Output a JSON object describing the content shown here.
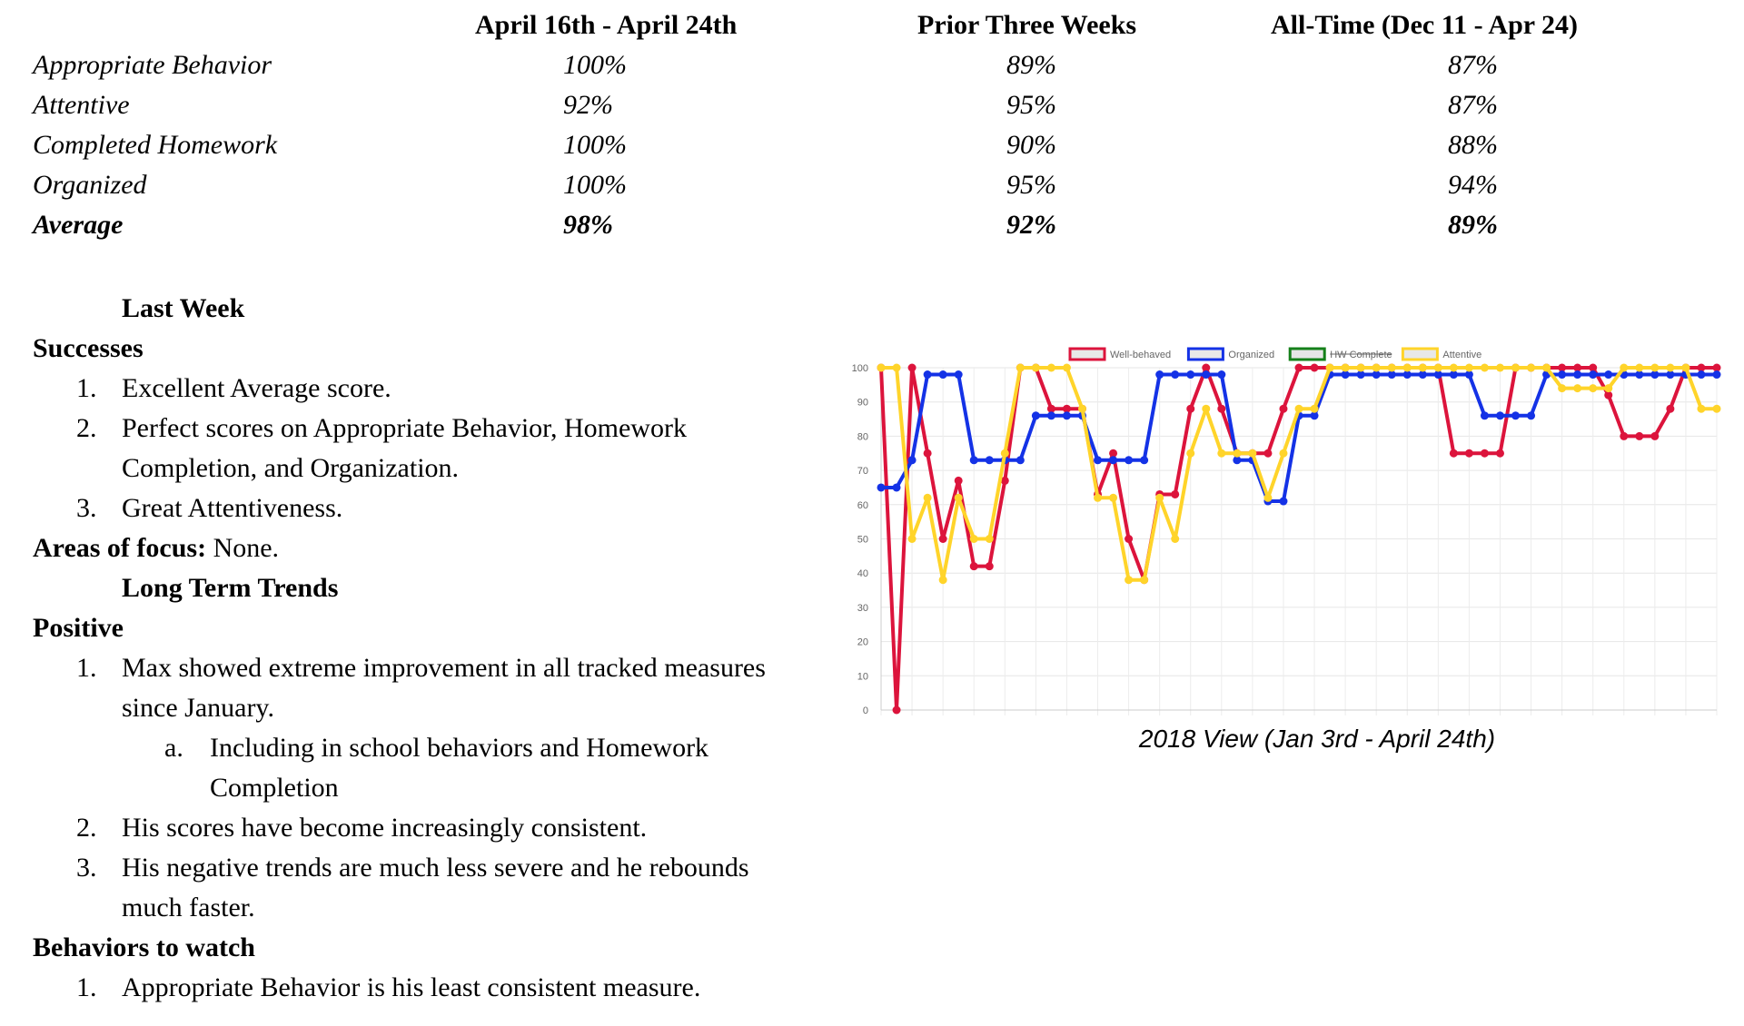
{
  "table": {
    "headers": [
      "April 16th - April 24th",
      "Prior Three Weeks",
      "All-Time (Dec 11 - Apr 24)"
    ],
    "rows": [
      {
        "label": "Appropriate Behavior",
        "v1": "100%",
        "v2": "89%",
        "v3": "87%"
      },
      {
        "label": "Attentive",
        "v1": "92%",
        "v2": "95%",
        "v3": "87%"
      },
      {
        "label": "Completed Homework",
        "v1": "100%",
        "v2": "90%",
        "v3": "88%"
      },
      {
        "label": "Organized",
        "v1": "100%",
        "v2": "95%",
        "v3": "94%"
      },
      {
        "label": "Average",
        "v1": "98%",
        "v2": "92%",
        "v3": "89%"
      }
    ]
  },
  "report": {
    "last_week_heading": "Last Week",
    "successes_heading": "Successes",
    "successes": [
      {
        "num": "1.",
        "text": "Excellent Average score."
      },
      {
        "num": "2.",
        "text": "Perfect scores on Appropriate Behavior, Homework",
        "cont": "Completion, and Organization."
      },
      {
        "num": "3.",
        "text": "Great Attentiveness."
      }
    ],
    "areas_label": "Areas of focus:",
    "areas_value": " None.",
    "long_term_heading": "Long Term Trends",
    "positive_heading": "Positive",
    "positive": [
      {
        "num": "1.",
        "text": "Max showed extreme improvement in all tracked measures",
        "cont": "since January."
      },
      {
        "num": "a.",
        "text": "Including in school behaviors and Homework",
        "cont": "Completion"
      },
      {
        "num": "2.",
        "text": "His scores have become increasingly consistent."
      },
      {
        "num": "3.",
        "text": "His negative trends are much less severe and he rebounds",
        "cont": "much faster."
      }
    ],
    "watch_heading": "Behaviors to watch",
    "watch": [
      {
        "num": "1.",
        "text": "Appropriate Behavior is his least consistent measure."
      }
    ]
  },
  "chart_caption": "2018 View (Jan 3rd - April 24th)",
  "chart_data": {
    "type": "line",
    "title": "",
    "xlabel": "",
    "ylabel": "",
    "ylim": [
      0,
      100
    ],
    "yticks": [
      0,
      10,
      20,
      30,
      40,
      50,
      60,
      70,
      80,
      90,
      100
    ],
    "grid": true,
    "legend_position": "top",
    "x_points": 55,
    "series": [
      {
        "name": "Well-behaved",
        "color": "#dc143c",
        "hidden": false,
        "values": [
          100,
          0,
          100,
          75,
          50,
          67,
          42,
          42,
          67,
          100,
          100,
          88,
          88,
          88,
          63,
          75,
          50,
          38,
          63,
          63,
          88,
          100,
          88,
          75,
          75,
          75,
          88,
          100,
          100,
          100,
          100,
          100,
          100,
          100,
          100,
          100,
          100,
          75,
          75,
          75,
          75,
          100,
          100,
          100,
          100,
          100,
          100,
          92,
          80,
          80,
          80,
          88,
          100,
          100,
          100
        ]
      },
      {
        "name": "Organized",
        "color": "#1432e6",
        "hidden": false,
        "values": [
          65,
          65,
          73,
          98,
          98,
          98,
          73,
          73,
          73,
          73,
          86,
          86,
          86,
          86,
          73,
          73,
          73,
          73,
          98,
          98,
          98,
          98,
          98,
          73,
          73,
          61,
          61,
          86,
          86,
          98,
          98,
          98,
          98,
          98,
          98,
          98,
          98,
          98,
          98,
          86,
          86,
          86,
          86,
          98,
          98,
          98,
          98,
          98,
          98,
          98,
          98,
          98,
          98,
          98,
          98
        ]
      },
      {
        "name": "HW Complete",
        "color": "#15801a",
        "hidden": true,
        "values": []
      },
      {
        "name": "Attentive",
        "color": "#ffd42a",
        "hidden": false,
        "values": [
          100,
          100,
          50,
          62,
          38,
          62,
          50,
          50,
          75,
          100,
          100,
          100,
          100,
          88,
          62,
          62,
          38,
          38,
          62,
          50,
          75,
          88,
          75,
          75,
          75,
          62,
          75,
          88,
          88,
          100,
          100,
          100,
          100,
          100,
          100,
          100,
          100,
          100,
          100,
          100,
          100,
          100,
          100,
          100,
          94,
          94,
          94,
          94,
          100,
          100,
          100,
          100,
          100,
          88,
          88
        ]
      }
    ]
  }
}
